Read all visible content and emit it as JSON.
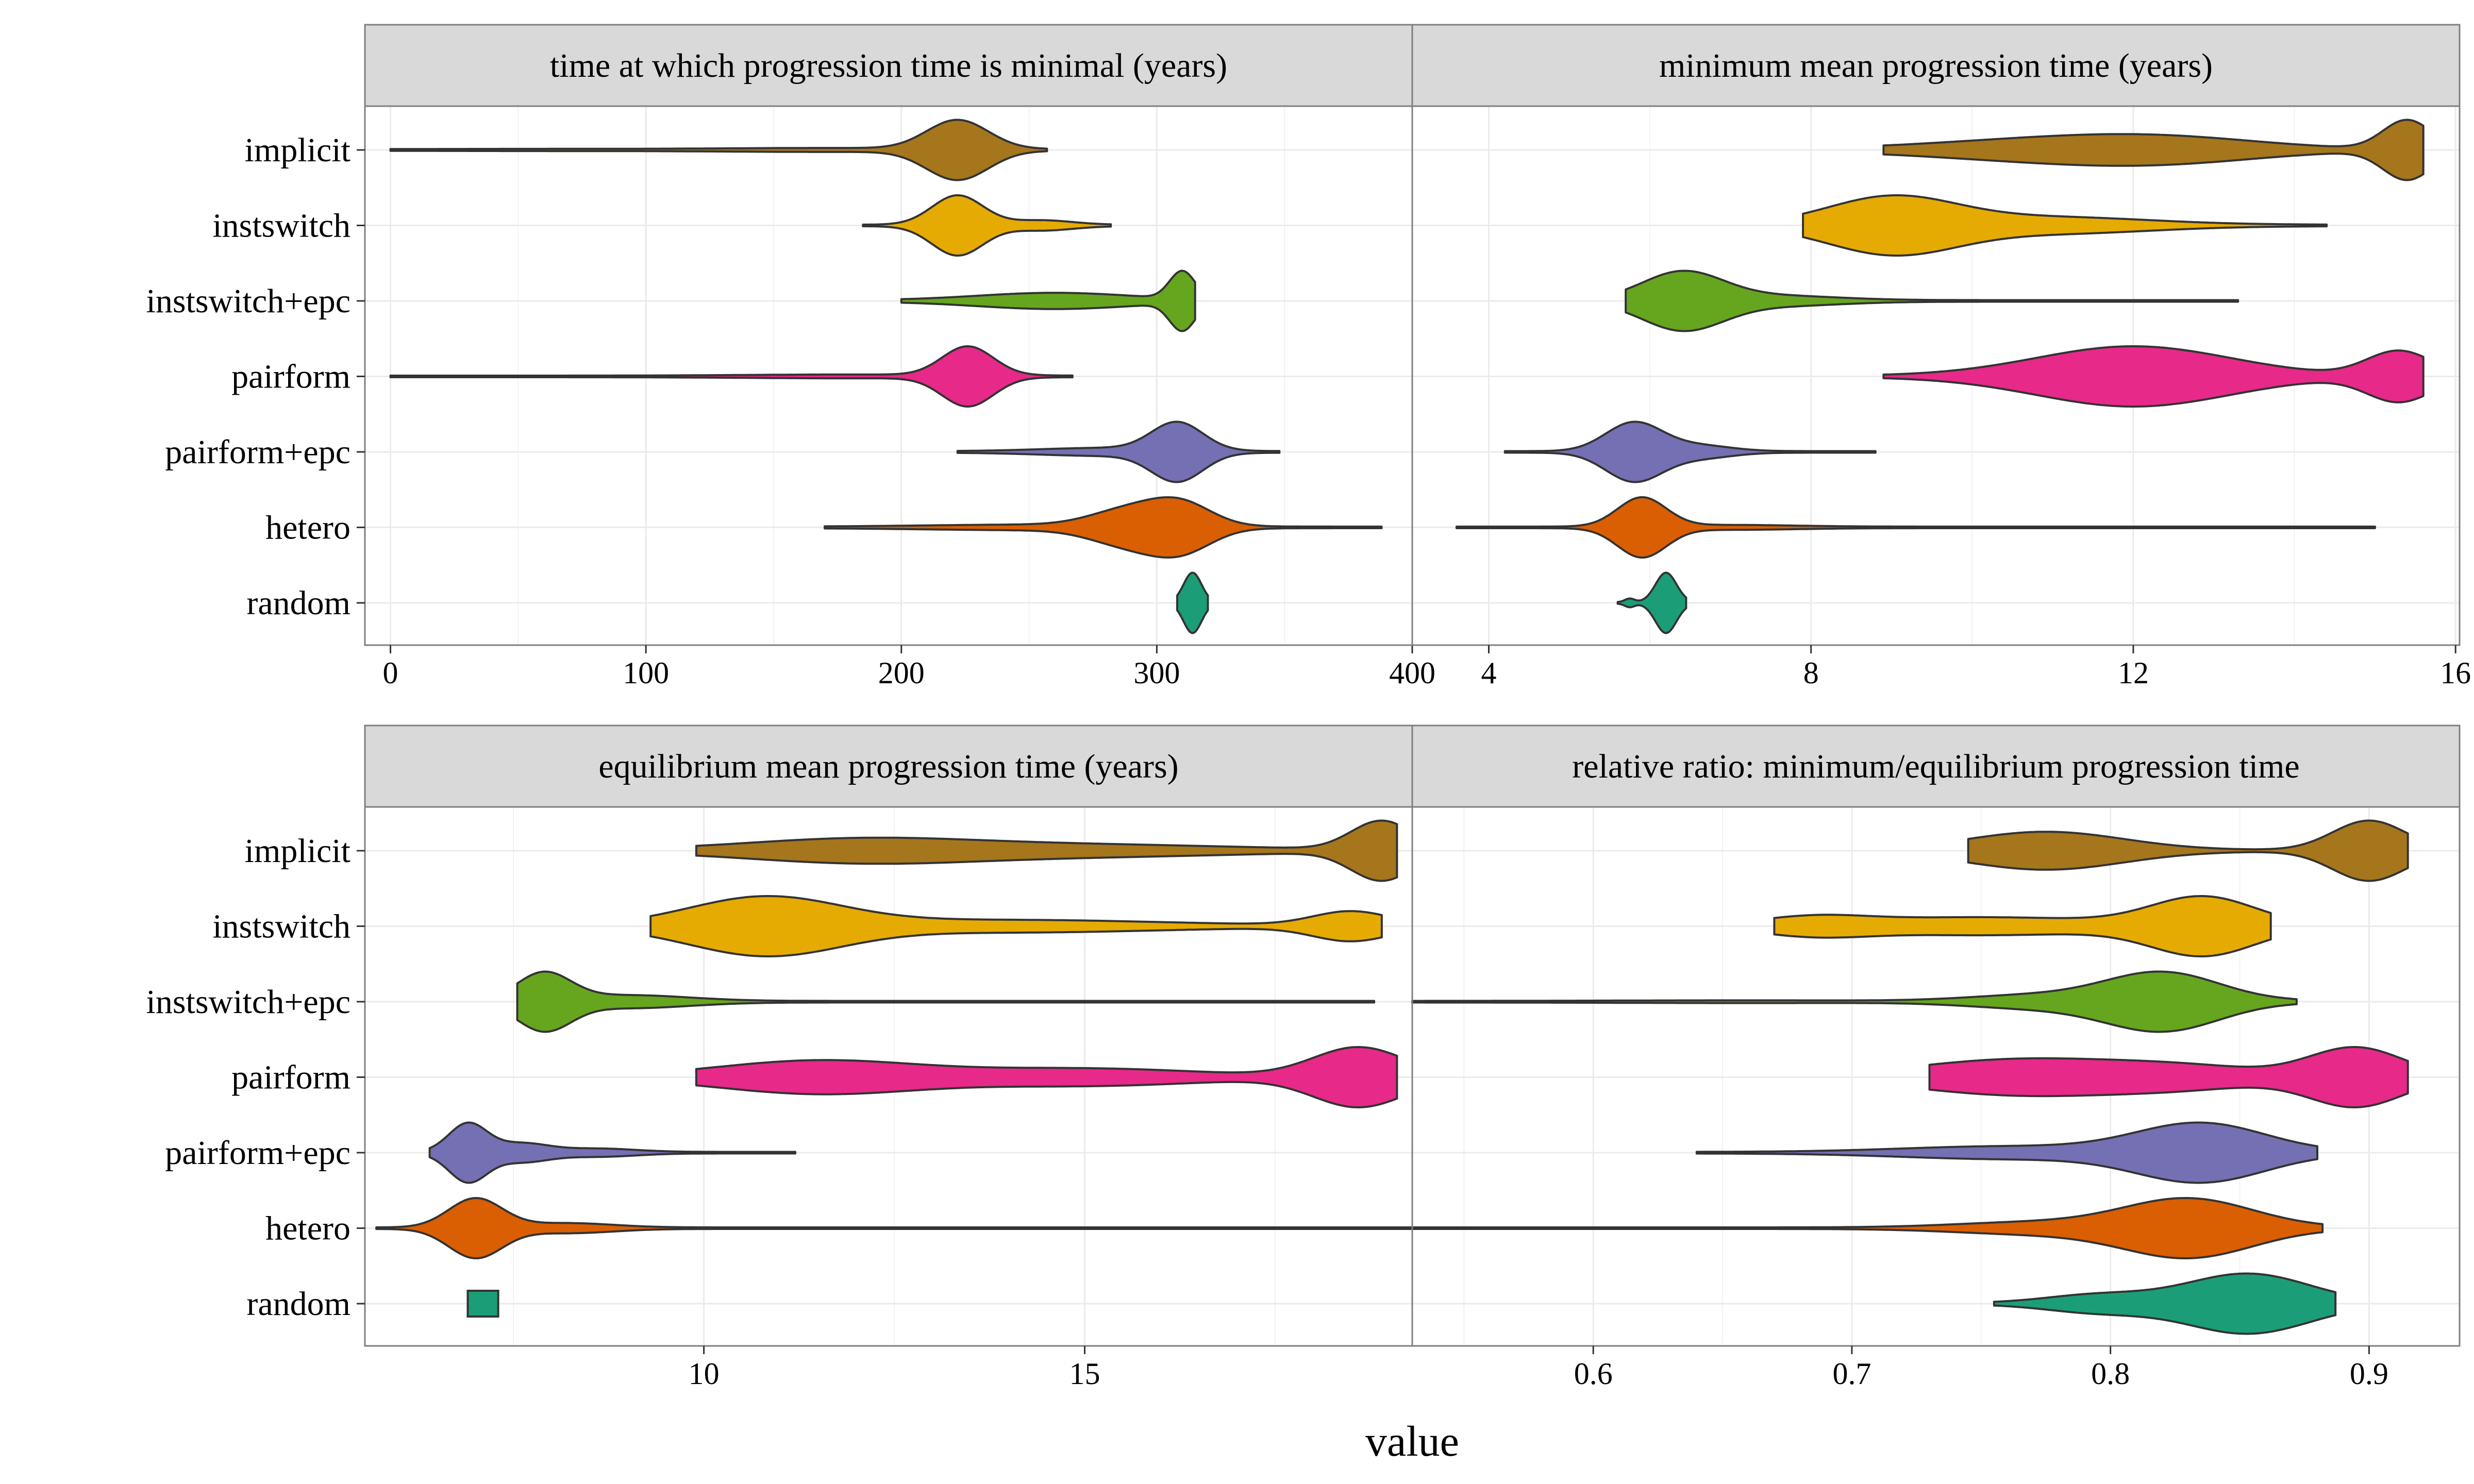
{
  "chart_data": {
    "type": "violin",
    "xlabel": "value",
    "categories": [
      "implicit",
      "instswitch",
      "instswitch+epc",
      "pairform",
      "pairform+epc",
      "hetero",
      "random"
    ],
    "colors": {
      "implicit": "#A6761D",
      "instswitch": "#E6AB02",
      "instswitch+epc": "#66A61E",
      "pairform": "#E7298A",
      "pairform+epc": "#7570B3",
      "hetero": "#D95F02",
      "random": "#1B9E77"
    },
    "panels": [
      {
        "title": "time at which progression time is minimal (years)",
        "xlim": [
          -10,
          400
        ],
        "ticks": [
          0,
          100,
          200,
          300,
          400
        ],
        "violins": [
          {
            "category": "implicit",
            "min": 0,
            "max": 257,
            "peaks": [
              [
                222,
                12,
                0.95
              ],
              [
                170,
                40,
                0.04
              ],
              [
                60,
                40,
                0.01
              ]
            ]
          },
          {
            "category": "instswitch",
            "min": 185,
            "max": 282,
            "peaks": [
              [
                222,
                10,
                1.0
              ],
              [
                255,
                12,
                0.15
              ]
            ]
          },
          {
            "category": "instswitch+epc",
            "min": 200,
            "max": 315,
            "peaks": [
              [
                310,
                5,
                0.45
              ],
              [
                260,
                30,
                0.12
              ]
            ]
          },
          {
            "category": "pairform",
            "min": 0,
            "max": 267,
            "peaks": [
              [
                226,
                10,
                1.0
              ],
              [
                180,
                40,
                0.04
              ]
            ]
          },
          {
            "category": "pairform+epc",
            "min": 222,
            "max": 348,
            "peaks": [
              [
                308,
                10,
                0.85
              ],
              [
                280,
                25,
                0.1
              ]
            ]
          },
          {
            "category": "hetero",
            "min": 170,
            "max": 388,
            "peaks": [
              [
                310,
                12,
                0.3
              ],
              [
                290,
                15,
                0.25
              ],
              [
                250,
                40,
                0.03
              ]
            ]
          },
          {
            "category": "random",
            "min": 308,
            "max": 320,
            "peaks": [
              [
                314,
                3.5,
                1.0
              ]
            ]
          }
        ]
      },
      {
        "title": "minimum mean progression time (years)",
        "xlim": [
          3.05,
          16.05
        ],
        "ticks": [
          4,
          8,
          12,
          16
        ],
        "violins": [
          {
            "category": "implicit",
            "min": 8.9,
            "max": 15.6,
            "peaks": [
              [
                15.4,
                0.3,
                0.18
              ],
              [
                11,
                1.5,
                0.06
              ],
              [
                12.5,
                1.2,
                0.05
              ]
            ]
          },
          {
            "category": "instswitch",
            "min": 7.9,
            "max": 14.4,
            "peaks": [
              [
                9,
                0.8,
                0.22
              ],
              [
                11,
                1.2,
                0.06
              ]
            ]
          },
          {
            "category": "instswitch+epc",
            "min": 5.7,
            "max": 13.3,
            "peaks": [
              [
                6.4,
                0.5,
                0.3
              ],
              [
                7.5,
                0.8,
                0.05
              ]
            ]
          },
          {
            "category": "pairform",
            "min": 8.9,
            "max": 15.6,
            "peaks": [
              [
                12,
                1.2,
                0.12
              ],
              [
                15.3,
                0.4,
                0.1
              ]
            ]
          },
          {
            "category": "pairform+epc",
            "min": 4.2,
            "max": 8.8,
            "peaks": [
              [
                5.8,
                0.35,
                0.75
              ],
              [
                6.6,
                0.4,
                0.15
              ]
            ]
          },
          {
            "category": "hetero",
            "min": 3.6,
            "max": 15.0,
            "peaks": [
              [
                5.9,
                0.3,
                0.68
              ],
              [
                7,
                0.8,
                0.04
              ]
            ]
          },
          {
            "category": "random",
            "min": 5.6,
            "max": 6.45,
            "peaks": [
              [
                6.2,
                0.13,
                1.0
              ],
              [
                5.75,
                0.06,
                0.12
              ]
            ]
          }
        ]
      },
      {
        "title": "equilibrium mean progression time (years)",
        "xlim": [
          5.55,
          19.3
        ],
        "ticks": [
          10,
          15
        ],
        "violins": [
          {
            "category": "implicit",
            "min": 9.9,
            "max": 19.1,
            "peaks": [
              [
                18.9,
                0.4,
                0.55
              ],
              [
                12,
                1.5,
                0.2
              ],
              [
                15,
                2,
                0.1
              ]
            ]
          },
          {
            "category": "instswitch",
            "min": 9.3,
            "max": 18.9,
            "peaks": [
              [
                10.8,
                1.0,
                0.3
              ],
              [
                18.5,
                0.5,
                0.15
              ],
              [
                14,
                2,
                0.06
              ]
            ]
          },
          {
            "category": "instswitch+epc",
            "min": 7.55,
            "max": 18.8,
            "peaks": [
              [
                7.9,
                0.35,
                0.7
              ],
              [
                9,
                0.8,
                0.15
              ]
            ]
          },
          {
            "category": "pairform",
            "min": 9.9,
            "max": 19.1,
            "peaks": [
              [
                18.6,
                0.6,
                0.55
              ],
              [
                11.5,
                1.3,
                0.3
              ],
              [
                15,
                1.5,
                0.15
              ]
            ]
          },
          {
            "category": "pairform+epc",
            "min": 6.4,
            "max": 11.2,
            "peaks": [
              [
                6.9,
                0.25,
                1.0
              ],
              [
                7.6,
                0.35,
                0.3
              ],
              [
                8.6,
                0.5,
                0.12
              ]
            ]
          },
          {
            "category": "hetero",
            "min": 5.7,
            "max": 19.0,
            "peaks": [
              [
                7.0,
                0.35,
                1.0
              ],
              [
                8.2,
                0.6,
                0.15
              ]
            ]
          },
          {
            "category": "random",
            "min": 6.9,
            "max": 7.3,
            "box": true
          }
        ]
      },
      {
        "title": "relative ratio: minimum/equilibrium progression time",
        "xlim": [
          0.53,
          0.935
        ],
        "ticks": [
          0.6,
          0.7,
          0.8,
          0.9
        ],
        "violins": [
          {
            "category": "implicit",
            "min": 0.745,
            "max": 0.915,
            "peaks": [
              [
                0.9,
                0.014,
                1.0
              ],
              [
                0.775,
                0.03,
                0.62
              ]
            ]
          },
          {
            "category": "instswitch",
            "min": 0.67,
            "max": 0.862,
            "peaks": [
              [
                0.836,
                0.02,
                1.0
              ],
              [
                0.75,
                0.05,
                0.3
              ],
              [
                0.685,
                0.02,
                0.25
              ]
            ]
          },
          {
            "category": "instswitch+epc",
            "min": 0.53,
            "max": 0.872,
            "peaks": [
              [
                0.82,
                0.022,
                1.0
              ],
              [
                0.77,
                0.025,
                0.2
              ],
              [
                0.66,
                0.05,
                0.02
              ]
            ]
          },
          {
            "category": "pairform",
            "min": 0.73,
            "max": 0.915,
            "peaks": [
              [
                0.895,
                0.018,
                1.0
              ],
              [
                0.765,
                0.04,
                0.6
              ],
              [
                0.83,
                0.03,
                0.3
              ]
            ]
          },
          {
            "category": "pairform+epc",
            "min": 0.64,
            "max": 0.88,
            "peaks": [
              [
                0.835,
                0.025,
                1.0
              ],
              [
                0.76,
                0.04,
                0.2
              ]
            ]
          },
          {
            "category": "hetero",
            "min": 0.52,
            "max": 0.882,
            "peaks": [
              [
                0.83,
                0.025,
                1.0
              ],
              [
                0.77,
                0.03,
                0.18
              ]
            ]
          },
          {
            "category": "random",
            "min": 0.755,
            "max": 0.887,
            "peaks": [
              [
                0.853,
                0.024,
                1.0
              ],
              [
                0.795,
                0.02,
                0.28
              ]
            ]
          }
        ]
      }
    ]
  }
}
